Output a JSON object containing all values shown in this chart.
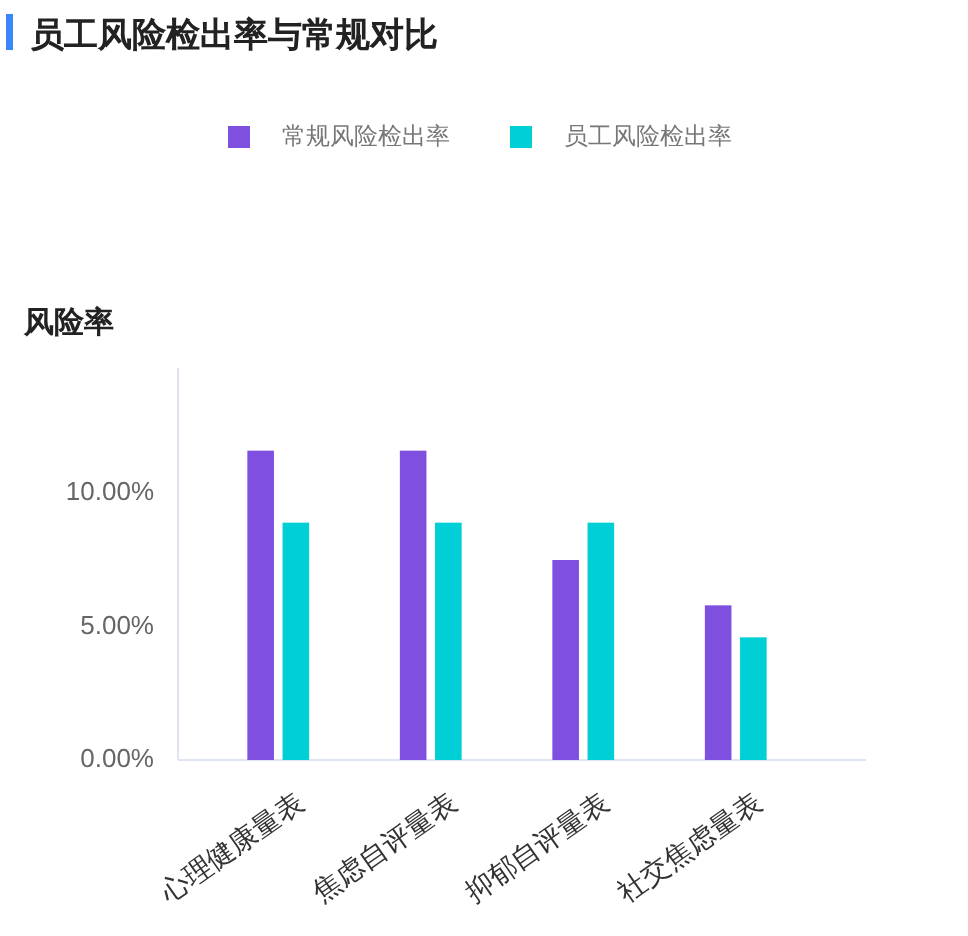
{
  "chart_data": {
    "type": "bar",
    "title": "员工风险检出率与常规对比",
    "ylabel": "风险率",
    "categories": [
      "心理健康量表",
      "焦虑自评量表",
      "抑郁自评量表",
      "社交焦虑量表"
    ],
    "series": [
      {
        "name": "常规风险检出率",
        "color": "#7f4fe0",
        "values": [
          11.6,
          11.6,
          7.5,
          5.8
        ]
      },
      {
        "name": "员工风险检出率",
        "color": "#00cfd6",
        "values": [
          8.9,
          8.9,
          8.9,
          4.6
        ]
      }
    ],
    "ylim": [
      0,
      14.7
    ],
    "yticks": [
      {
        "value": 0,
        "label": "0.00%"
      },
      {
        "value": 5,
        "label": "5.00%"
      },
      {
        "value": 10,
        "label": "10.00%"
      }
    ],
    "legend": "top"
  }
}
